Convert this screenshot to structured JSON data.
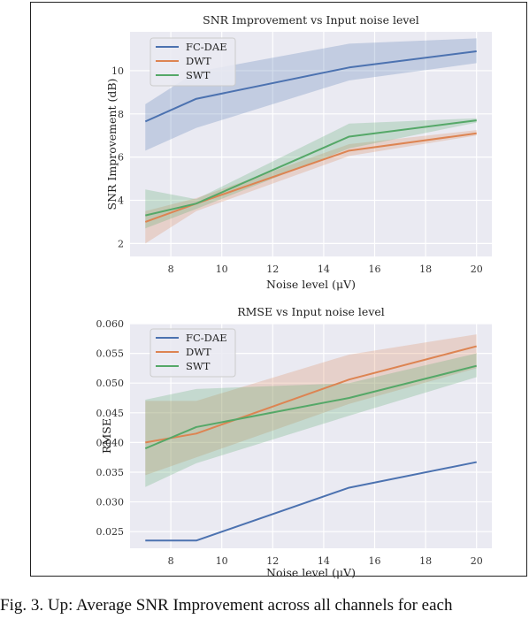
{
  "caption": "Fig. 3.   Up: Average SNR Improvement across all channels for each",
  "chart_data": [
    {
      "type": "line",
      "title": "SNR Improvement vs Input noise level",
      "xlabel": "Noise level (μV)",
      "ylabel": "SNR Improvement (dB)",
      "xlim": [
        6.4,
        20.6
      ],
      "ylim": [
        1.4,
        11.8
      ],
      "xticks": [
        "8",
        "10",
        "12",
        "14",
        "16",
        "18",
        "20"
      ],
      "xtick_values": [
        8,
        10,
        12,
        14,
        16,
        18,
        20
      ],
      "yticks": [
        "2",
        "4",
        "6",
        "8",
        "10"
      ],
      "ytick_values": [
        2,
        4,
        6,
        8,
        10
      ],
      "grid": true,
      "legend_position": "top-left",
      "x": [
        7,
        9,
        15,
        20
      ],
      "series": [
        {
          "name": "FC-DAE",
          "color": "#4c72b0",
          "values": [
            7.65,
            8.7,
            10.15,
            10.9
          ],
          "lower": [
            6.3,
            7.35,
            9.55,
            10.35
          ],
          "upper": [
            8.45,
            9.95,
            11.25,
            11.5
          ]
        },
        {
          "name": "DWT",
          "color": "#dd8452",
          "values": [
            3.0,
            3.85,
            6.3,
            7.1
          ],
          "lower": [
            2.0,
            3.5,
            6.05,
            7.0
          ],
          "upper": [
            3.5,
            4.1,
            6.6,
            7.25
          ]
        },
        {
          "name": "SWT",
          "color": "#55a868",
          "values": [
            3.3,
            3.85,
            6.95,
            7.7
          ],
          "lower": [
            2.7,
            3.6,
            6.4,
            7.6
          ],
          "upper": [
            4.5,
            4.05,
            7.55,
            7.8
          ]
        }
      ]
    },
    {
      "type": "line",
      "title": "RMSE vs Input noise level",
      "xlabel": "Noise level (μV)",
      "ylabel": "RMSE",
      "xlim": [
        6.4,
        20.6
      ],
      "ylim": [
        0.0222,
        0.06
      ],
      "xticks": [
        "8",
        "10",
        "12",
        "14",
        "16",
        "18",
        "20"
      ],
      "xtick_values": [
        8,
        10,
        12,
        14,
        16,
        18,
        20
      ],
      "yticks": [
        "0.025",
        "0.030",
        "0.035",
        "0.040",
        "0.045",
        "0.050",
        "0.055",
        "0.060"
      ],
      "ytick_values": [
        0.025,
        0.03,
        0.035,
        0.04,
        0.045,
        0.05,
        0.055,
        0.06
      ],
      "grid": true,
      "legend_position": "top-left",
      "x": [
        7,
        9,
        15,
        20
      ],
      "series": [
        {
          "name": "FC-DAE",
          "color": "#4c72b0",
          "values": [
            0.0235,
            0.0235,
            0.0324,
            0.0367
          ],
          "lower": [
            0.0234,
            0.0234,
            0.0323,
            0.0366
          ],
          "upper": [
            0.0236,
            0.0236,
            0.0325,
            0.0368
          ]
        },
        {
          "name": "DWT",
          "color": "#dd8452",
          "values": [
            0.04,
            0.0415,
            0.0506,
            0.0562
          ],
          "lower": [
            0.0345,
            0.0375,
            0.0465,
            0.0525
          ],
          "upper": [
            0.047,
            0.047,
            0.0548,
            0.0582
          ]
        },
        {
          "name": "SWT",
          "color": "#55a868",
          "values": [
            0.039,
            0.0426,
            0.0475,
            0.0529
          ],
          "lower": [
            0.0325,
            0.0365,
            0.0445,
            0.051
          ],
          "upper": [
            0.0472,
            0.049,
            0.05,
            0.055
          ]
        }
      ]
    }
  ]
}
